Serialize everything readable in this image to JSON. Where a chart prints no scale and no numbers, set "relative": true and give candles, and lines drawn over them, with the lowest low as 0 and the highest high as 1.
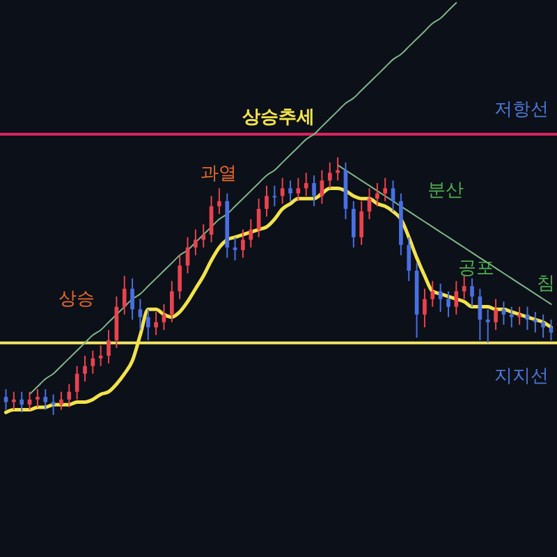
{
  "chart_data": {
    "type": "candlestick",
    "title": "상승추세",
    "relative": true,
    "tick_labels": false,
    "categories": [
      null,
      null,
      null,
      null,
      null,
      null,
      null,
      null,
      null,
      null,
      null,
      null,
      null,
      null,
      null,
      null,
      null,
      null,
      null,
      null,
      null,
      null,
      null,
      null,
      null,
      null,
      null,
      null,
      null,
      null,
      null,
      null,
      null,
      null,
      null,
      null,
      null,
      null,
      null,
      null,
      null,
      null,
      null,
      null,
      null,
      null,
      null,
      null,
      null,
      null,
      null,
      null,
      null,
      null,
      null,
      null,
      null,
      null,
      null,
      null,
      null,
      null,
      null,
      null,
      null,
      null,
      null,
      null,
      null,
      null
    ],
    "ohlc": [
      [
        0.07,
        0.1,
        0.02,
        0.05
      ],
      [
        0.05,
        0.09,
        0.02,
        0.06
      ],
      [
        0.06,
        0.09,
        0.01,
        0.04
      ],
      [
        0.04,
        0.09,
        0.02,
        0.06
      ],
      [
        0.06,
        0.1,
        0.03,
        0.07
      ],
      [
        0.07,
        0.1,
        0.02,
        0.05
      ],
      [
        0.05,
        0.08,
        0.0,
        0.04
      ],
      [
        0.04,
        0.09,
        0.02,
        0.06
      ],
      [
        0.06,
        0.12,
        0.03,
        0.09
      ],
      [
        0.09,
        0.19,
        0.06,
        0.16
      ],
      [
        0.16,
        0.23,
        0.13,
        0.19
      ],
      [
        0.19,
        0.25,
        0.16,
        0.22
      ],
      [
        0.22,
        0.27,
        0.19,
        0.23
      ],
      [
        0.23,
        0.33,
        0.2,
        0.29
      ],
      [
        0.29,
        0.46,
        0.26,
        0.42
      ],
      [
        0.42,
        0.54,
        0.39,
        0.49
      ],
      [
        0.49,
        0.53,
        0.37,
        0.41
      ],
      [
        0.41,
        0.45,
        0.33,
        0.38
      ],
      [
        0.38,
        0.41,
        0.29,
        0.34
      ],
      [
        0.34,
        0.4,
        0.31,
        0.36
      ],
      [
        0.36,
        0.43,
        0.33,
        0.39
      ],
      [
        0.39,
        0.52,
        0.36,
        0.48
      ],
      [
        0.48,
        0.62,
        0.45,
        0.58
      ],
      [
        0.58,
        0.69,
        0.55,
        0.65
      ],
      [
        0.65,
        0.72,
        0.62,
        0.68
      ],
      [
        0.68,
        0.74,
        0.65,
        0.7
      ],
      [
        0.7,
        0.85,
        0.67,
        0.81
      ],
      [
        0.81,
        0.88,
        0.78,
        0.83
      ],
      [
        0.83,
        0.86,
        0.61,
        0.65
      ],
      [
        0.65,
        0.69,
        0.6,
        0.64
      ],
      [
        0.64,
        0.72,
        0.61,
        0.68
      ],
      [
        0.68,
        0.76,
        0.65,
        0.72
      ],
      [
        0.72,
        0.84,
        0.69,
        0.8
      ],
      [
        0.8,
        0.89,
        0.77,
        0.85
      ],
      [
        0.85,
        0.89,
        0.81,
        0.85
      ],
      [
        0.85,
        0.92,
        0.82,
        0.88
      ],
      [
        0.88,
        0.91,
        0.83,
        0.86
      ],
      [
        0.86,
        0.92,
        0.83,
        0.88
      ],
      [
        0.88,
        0.94,
        0.85,
        0.9
      ],
      [
        0.9,
        0.93,
        0.81,
        0.85
      ],
      [
        0.85,
        0.95,
        0.82,
        0.91
      ],
      [
        0.91,
        0.98,
        0.88,
        0.94
      ],
      [
        0.94,
        1.0,
        0.91,
        0.95
      ],
      [
        0.95,
        0.98,
        0.76,
        0.8
      ],
      [
        0.8,
        0.83,
        0.65,
        0.69
      ],
      [
        0.69,
        0.83,
        0.66,
        0.79
      ],
      [
        0.79,
        0.88,
        0.76,
        0.84
      ],
      [
        0.84,
        0.9,
        0.81,
        0.86
      ],
      [
        0.86,
        0.92,
        0.83,
        0.88
      ],
      [
        0.88,
        0.91,
        0.79,
        0.83
      ],
      [
        0.83,
        0.86,
        0.62,
        0.66
      ],
      [
        0.66,
        0.69,
        0.52,
        0.56
      ],
      [
        0.56,
        0.59,
        0.3,
        0.39
      ],
      [
        0.39,
        0.49,
        0.34,
        0.45
      ],
      [
        0.45,
        0.52,
        0.42,
        0.48
      ],
      [
        0.48,
        0.51,
        0.4,
        0.45
      ],
      [
        0.45,
        0.48,
        0.38,
        0.42
      ],
      [
        0.42,
        0.52,
        0.39,
        0.48
      ],
      [
        0.48,
        0.54,
        0.45,
        0.5
      ],
      [
        0.5,
        0.53,
        0.42,
        0.46
      ],
      [
        0.46,
        0.49,
        0.29,
        0.37
      ],
      [
        0.37,
        0.41,
        0.28,
        0.36
      ],
      [
        0.36,
        0.45,
        0.33,
        0.41
      ],
      [
        0.41,
        0.44,
        0.35,
        0.39
      ],
      [
        0.39,
        0.42,
        0.34,
        0.38
      ],
      [
        0.38,
        0.42,
        0.35,
        0.39
      ],
      [
        0.39,
        0.42,
        0.33,
        0.37
      ],
      [
        0.37,
        0.4,
        0.32,
        0.36
      ],
      [
        0.36,
        0.39,
        0.3,
        0.34
      ],
      [
        0.34,
        0.37,
        0.29,
        0.32
      ]
    ],
    "colors": [
      "#4a6fe0",
      "#e8434f",
      "#4a6fe0",
      "#e8434f",
      "#e8434f",
      "#4a6fe0",
      "#4a6fe0",
      "#e8434f",
      "#e8434f",
      "#e8434f",
      "#e8434f",
      "#e8434f",
      "#e8434f",
      "#e8434f",
      "#e8434f",
      "#e8434f",
      "#4a6fe0",
      "#4a6fe0",
      "#4a6fe0",
      "#e8434f",
      "#e8434f",
      "#e8434f",
      "#e8434f",
      "#e8434f",
      "#e8434f",
      "#e8434f",
      "#e8434f",
      "#e8434f",
      "#4a6fe0",
      "#4a6fe0",
      "#e8434f",
      "#e8434f",
      "#e8434f",
      "#e8434f",
      "#4a6fe0",
      "#e8434f",
      "#4a6fe0",
      "#e8434f",
      "#e8434f",
      "#4a6fe0",
      "#e8434f",
      "#e8434f",
      "#e8434f",
      "#4a6fe0",
      "#4a6fe0",
      "#e8434f",
      "#e8434f",
      "#e8434f",
      "#e8434f",
      "#4a6fe0",
      "#4a6fe0",
      "#4a6fe0",
      "#4a6fe0",
      "#e8434f",
      "#e8434f",
      "#4a6fe0",
      "#4a6fe0",
      "#e8434f",
      "#e8434f",
      "#4a6fe0",
      "#4a6fe0",
      "#4a6fe0",
      "#e8434f",
      "#4a6fe0",
      "#4a6fe0",
      "#e8434f",
      "#4a6fe0",
      "#4a6fe0",
      "#4a6fe0",
      "#4a6fe0"
    ],
    "series": [
      {
        "type": "line",
        "color": "#f2e34a",
        "values": [
          0.01,
          0.02,
          0.02,
          0.02,
          0.03,
          0.03,
          0.04,
          0.04,
          0.04,
          0.05,
          0.05,
          0.06,
          0.08,
          0.09,
          0.12,
          0.16,
          0.21,
          0.31,
          0.41,
          0.41,
          0.39,
          0.38,
          0.4,
          0.44,
          0.49,
          0.54,
          0.6,
          0.65,
          0.68,
          0.69,
          0.7,
          0.71,
          0.72,
          0.73,
          0.76,
          0.8,
          0.82,
          0.84,
          0.84,
          0.84,
          0.86,
          0.88,
          0.88,
          0.87,
          0.85,
          0.84,
          0.84,
          0.82,
          0.81,
          0.79,
          0.76,
          0.69,
          0.61,
          0.54,
          0.48,
          0.47,
          0.46,
          0.45,
          0.44,
          0.42,
          0.42,
          0.42,
          0.41,
          0.41,
          0.4,
          0.39,
          0.38,
          0.37,
          0.36,
          0.34
        ]
      },
      {
        "type": "line",
        "color": "#7fb88a",
        "values": [
          null,
          null,
          null,
          0.08,
          0.11,
          0.14,
          0.16,
          0.19,
          0.22,
          0.25,
          0.28,
          0.31,
          0.33,
          0.36,
          0.39,
          0.42,
          0.45,
          0.47,
          0.5,
          0.53,
          0.56,
          0.59,
          0.62,
          0.64,
          0.67,
          0.7,
          0.73,
          0.76,
          0.78,
          0.81,
          0.84,
          0.87,
          0.9,
          0.93,
          0.95,
          0.98,
          1.01,
          1.04,
          1.07,
          1.09,
          1.12,
          1.15,
          1.18,
          1.21,
          1.23,
          1.26,
          1.29,
          1.32,
          1.35,
          1.38,
          1.4,
          1.43,
          1.46,
          1.49,
          1.52,
          1.54,
          1.57,
          1.6,
          null,
          null,
          null,
          null,
          null,
          null,
          null,
          null,
          null,
          null,
          null,
          null
        ]
      },
      {
        "type": "line",
        "color": "#7fb88a",
        "values": [
          null,
          null,
          null,
          null,
          null,
          null,
          null,
          null,
          null,
          null,
          null,
          null,
          null,
          null,
          null,
          null,
          null,
          null,
          null,
          null,
          null,
          null,
          null,
          null,
          null,
          null,
          null,
          null,
          null,
          null,
          null,
          null,
          null,
          null,
          null,
          null,
          null,
          null,
          null,
          null,
          null,
          null,
          0.97,
          0.95,
          0.93,
          0.91,
          0.89,
          0.87,
          0.85,
          0.83,
          0.81,
          0.79,
          0.77,
          0.75,
          0.73,
          0.71,
          0.69,
          0.67,
          0.65,
          0.63,
          0.61,
          0.59,
          0.57,
          0.55,
          0.53,
          0.51,
          0.49,
          0.47,
          0.45,
          0.43
        ]
      }
    ],
    "ref_lines": [
      {
        "axis": "y",
        "value": 1.09,
        "label": "저항선",
        "color": "#e0245e"
      },
      {
        "axis": "y",
        "value": 0.28,
        "label": "지지선",
        "color": "#f5e663"
      }
    ],
    "annotations": [
      "상승",
      "과열",
      "분산",
      "공포",
      "침"
    ]
  }
}
